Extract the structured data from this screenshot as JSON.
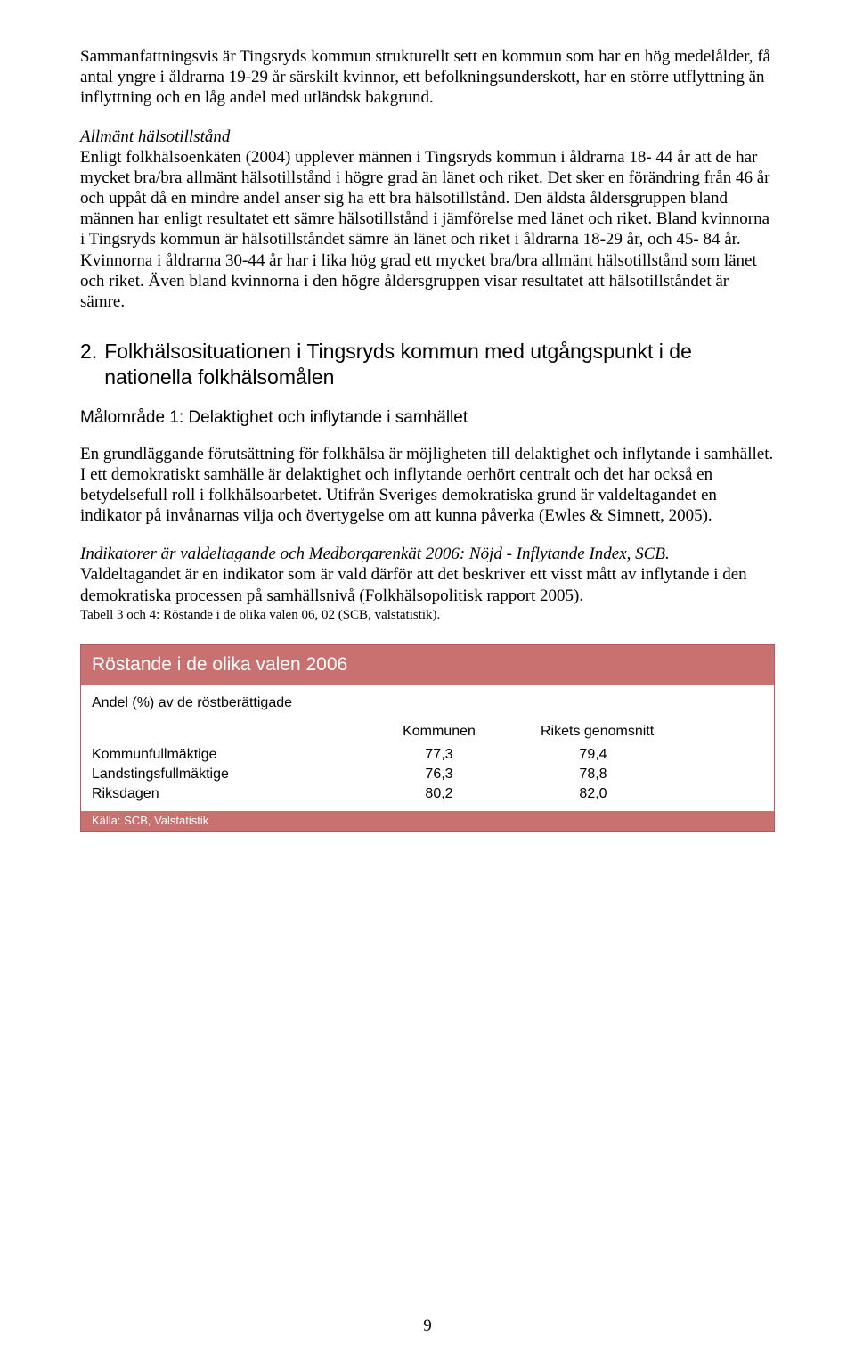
{
  "colors": {
    "text": "#000000",
    "table_border": "#b55d5d",
    "table_header_bg": "#c97070",
    "table_header_text": "#ffffff",
    "table_body_bg": "#ffffff",
    "table_footer_bg": "#c97070",
    "table_footer_text": "#ffffff"
  },
  "paragraphs": {
    "summary": "Sammanfattningsvis är Tingsryds kommun strukturellt sett en kommun som har en hög medelålder, få antal yngre i åldrarna 19-29 år särskilt kvinnor, ett befolkningsunderskott, har en större utflyttning än inflyttning och en låg andel med utländsk bakgrund.",
    "health_heading": "Allmänt hälsotillstånd",
    "health_body": "Enligt folkhälsoenkäten (2004) upplever männen i Tingsryds kommun i åldrarna 18- 44 år att de har mycket bra/bra allmänt hälsotillstånd i högre grad än länet och riket. Det sker en förändring från 46 år och uppåt då en mindre andel anser sig ha ett bra hälsotillstånd. Den äldsta åldersgruppen bland männen har enligt resultatet ett sämre hälsotillstånd i jämförelse med länet och riket. Bland kvinnorna i Tingsryds kommun är hälsotillståndet sämre än länet och riket i åldrarna 18-29 år, och 45- 84 år. Kvinnorna i åldrarna 30-44 år har i lika hög grad ett mycket bra/bra allmänt hälsotillstånd som länet och riket. Även bland kvinnorna i den högre åldersgruppen visar resultatet att hälsotillståndet är sämre.",
    "section2_num": "2.",
    "section2_title": "Folkhälsosituationen i Tingsryds kommun med utgångspunkt i de nationella folkhälsomålen",
    "goal1_heading": "Målområde 1: Delaktighet och inflytande i samhället",
    "goal1_body": "En grundläggande förutsättning för folkhälsa är möjligheten till delaktighet och inflytande i samhället. I ett demokratiskt samhälle är delaktighet och inflytande oerhört centralt och det har också en betydelsefull roll i folkhälsoarbetet. Utifrån Sveriges demokratiska grund är valdeltagandet en indikator på invånarnas vilja och övertygelse om att kunna påverka (Ewles & Simnett, 2005).",
    "indicator": "Indikatorer är valdeltagande och Medborgarenkät 2006: Nöjd - Inflytande Index, SCB.",
    "indicator_body": "Valdeltagandet är en indikator som är vald därför att det beskriver ett visst mått av inflytande i den demokratiska processen på samhällsnivå (Folkhälsopolitisk rapport 2005).",
    "caption": "Tabell 3 och 4: Röstande i de olika valen 06, 02 (SCB, valstatistik)."
  },
  "voting_table": {
    "title": "Röstande i de olika valen 2006",
    "desc": "Andel (%) av de röstberättigade",
    "columns": {
      "spacer": "",
      "k": "Kommunen",
      "r": "Rikets genomsnitt"
    },
    "rows": [
      {
        "label": "Kommunfullmäktige",
        "k": "77,3",
        "r": "79,4"
      },
      {
        "label": "Landstingsfullmäktige",
        "k": "76,3",
        "r": "78,8"
      },
      {
        "label": "Riksdagen",
        "k": "80,2",
        "r": "82,0"
      }
    ],
    "source": "Källa: SCB, Valstatistik"
  },
  "page_number": "9"
}
